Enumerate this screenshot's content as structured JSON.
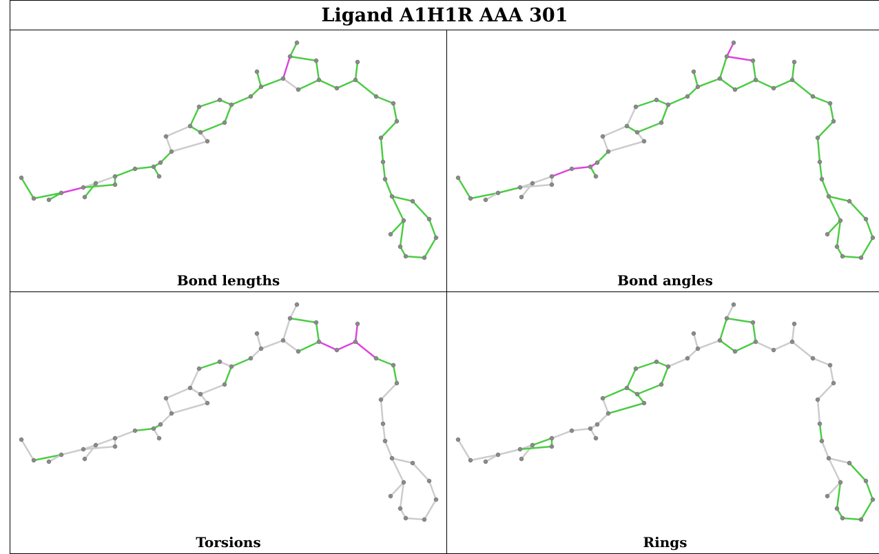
{
  "title": "Ligand A1H1R AAA 301",
  "panels": [
    {
      "label": "Bond lengths"
    },
    {
      "label": "Bond angles"
    },
    {
      "label": "Torsions"
    },
    {
      "label": "Rings"
    }
  ]
}
